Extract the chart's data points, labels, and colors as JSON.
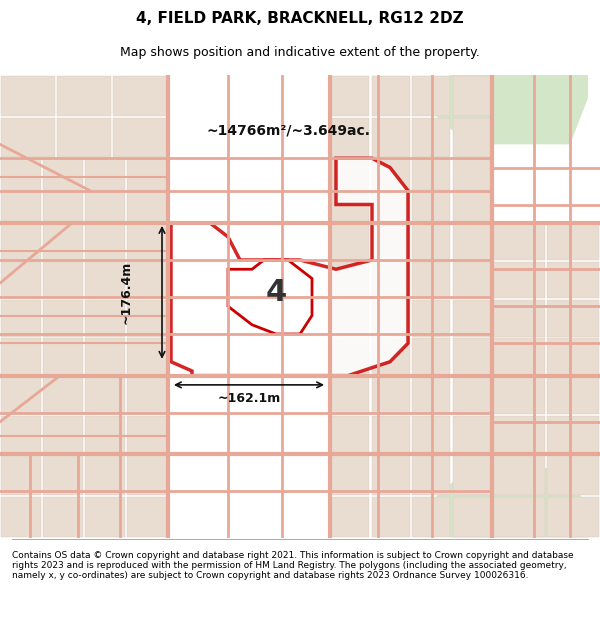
{
  "title": "4, FIELD PARK, BRACKNELL, RG12 2DZ",
  "subtitle": "Map shows position and indicative extent of the property.",
  "footer": "Contains OS data © Crown copyright and database right 2021. This information is subject to Crown copyright and database rights 2023 and is reproduced with the permission of HM Land Registry. The polygons (including the associated geometry, namely x, y co-ordinates) are subject to Crown copyright and database rights 2023 Ordnance Survey 100026316.",
  "area_label": "~14766m²/~3.649ac.",
  "width_label": "~162.1m",
  "height_label": "~176.4m",
  "plot_number": "4",
  "bg_color": "#f0ede8",
  "map_bg": "#f5f2ee",
  "street_color": "#e8a090",
  "property_color": "#cc0000",
  "property_fill": "#ffffff",
  "green_area": "#c8dfc8",
  "fig_width": 6.0,
  "fig_height": 6.25,
  "title_fontsize": 11,
  "subtitle_fontsize": 9,
  "footer_fontsize": 6.5
}
